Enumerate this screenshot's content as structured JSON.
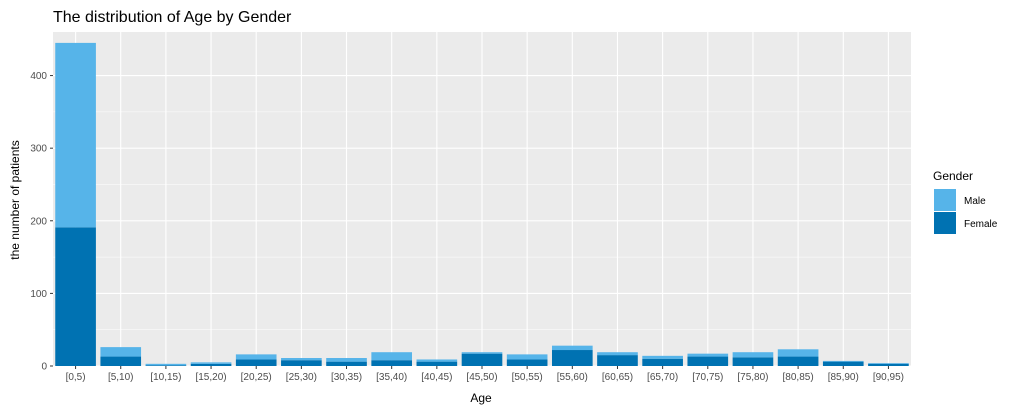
{
  "chart_data": {
    "type": "bar",
    "stacked": true,
    "title": "The distribution of Age by Gender",
    "xlabel": "Age",
    "ylabel": "the number of patients",
    "categories": [
      "[0,5)",
      "[5,10)",
      "[10,15)",
      "[15,20)",
      "[20,25)",
      "[25,30)",
      "[30,35)",
      "[35,40)",
      "[40,45)",
      "[45,50)",
      "[50,55)",
      "[55,60)",
      "[60,65)",
      "[65,70)",
      "[70,75)",
      "[75,80)",
      "[80,85)",
      "[85,90)",
      "[90,95)"
    ],
    "series": [
      {
        "name": "Male",
        "color": "#56B4E9",
        "values": [
          254,
          13,
          2,
          2,
          7,
          3,
          5,
          11,
          3,
          2,
          7,
          6,
          4,
          4,
          4,
          7,
          10,
          1,
          1
        ]
      },
      {
        "name": "Female",
        "color": "#0072B2",
        "values": [
          191,
          13,
          1,
          3,
          9,
          8,
          6,
          8,
          6,
          17,
          9,
          22,
          15,
          10,
          13,
          12,
          13,
          6,
          3
        ]
      }
    ],
    "ylim": [
      0,
      460
    ],
    "yticks": [
      0,
      100,
      200,
      300,
      400
    ],
    "legend": {
      "title": "Gender",
      "position": "right",
      "entries": [
        "Male",
        "Female"
      ]
    },
    "grid": true,
    "panel_background": "#EBEBEB"
  }
}
